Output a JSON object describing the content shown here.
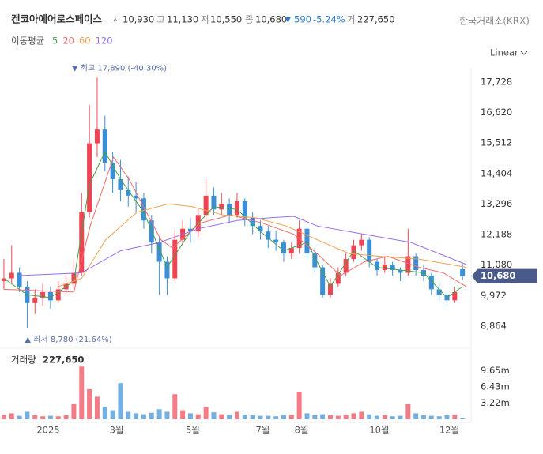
{
  "header": {
    "title": "켄코아에어로스페이스",
    "open_label": "시",
    "open": "10,930",
    "high_label": "고",
    "high": "11,130",
    "low_label": "저",
    "low": "10,550",
    "close_label": "종",
    "close": "10,680",
    "change_arrow": "▼",
    "change": "590",
    "change_pct": "-5.24%",
    "volume_label": "거",
    "volume": "227,650",
    "exchange": "한국거래소(KRX)",
    "ma_label": "이동평균",
    "scale_mode": "Linear"
  },
  "chart_data": {
    "type": "candlestick",
    "up_color": "#f04452",
    "down_color": "#3b8fd9",
    "xlim": [
      -0.5,
      60
    ],
    "xticks": [
      {
        "value": 5.7,
        "label": "2025"
      },
      {
        "value": 14.5,
        "label": "3월"
      },
      {
        "value": 24.3,
        "label": "5월"
      },
      {
        "value": 33.3,
        "label": "7월"
      },
      {
        "value": 38.3,
        "label": "8월"
      },
      {
        "value": 48.3,
        "label": "10월"
      },
      {
        "value": 57.3,
        "label": "12월"
      }
    ],
    "ylim": [
      8090,
      18270
    ],
    "yticks": [
      {
        "value": 8864,
        "label": "8,864"
      },
      {
        "value": 9972,
        "label": "9,972"
      },
      {
        "value": 11080,
        "label": "11,080"
      },
      {
        "value": 12188,
        "label": "12,188"
      },
      {
        "value": 13296,
        "label": "13,296"
      },
      {
        "value": 14404,
        "label": "14,404"
      },
      {
        "value": 15512,
        "label": "15,512"
      },
      {
        "value": 16620,
        "label": "16,620"
      },
      {
        "value": 17728,
        "label": "17,728"
      }
    ],
    "candles": {
      "x": [
        0,
        1,
        2,
        3,
        4,
        5,
        6,
        7,
        8,
        9,
        10,
        11,
        12,
        13,
        14,
        15,
        16,
        17,
        18,
        19,
        20,
        21,
        22,
        23,
        24,
        25,
        26,
        27,
        28,
        29,
        30,
        31,
        32,
        33,
        34,
        35,
        36,
        37,
        38,
        39,
        40,
        41,
        42,
        43,
        44,
        45,
        46,
        47,
        48,
        49,
        50,
        51,
        52,
        53,
        54,
        55,
        56,
        57,
        58,
        59
      ],
      "open": [
        10500,
        10600,
        10800,
        10300,
        9700,
        9900,
        10100,
        9800,
        10200,
        10400,
        10800,
        13000,
        15500,
        16000,
        14800,
        14200,
        13800,
        13600,
        13500,
        12700,
        11900,
        11200,
        10600,
        12000,
        12400,
        12300,
        12900,
        13600,
        13100,
        13300,
        12900,
        13400,
        12800,
        12500,
        12300,
        12000,
        11900,
        11500,
        11700,
        12400,
        11500,
        11000,
        10000,
        10400,
        10800,
        11300,
        11800,
        12000,
        11200,
        10900,
        11100,
        10900,
        10800,
        11400,
        10900,
        10700,
        10200,
        10000,
        9800,
        10930
      ],
      "high": [
        11300,
        11800,
        11000,
        10500,
        10200,
        10400,
        10300,
        10500,
        10700,
        11300,
        13700,
        16900,
        17890,
        16500,
        15200,
        14900,
        14300,
        14100,
        13700,
        12900,
        12100,
        11400,
        12300,
        12700,
        12800,
        13100,
        14200,
        13900,
        13700,
        13500,
        13700,
        13500,
        13000,
        12700,
        12500,
        12300,
        12000,
        11900,
        12700,
        12500,
        11700,
        11100,
        10600,
        11000,
        11500,
        12000,
        12200,
        12100,
        11300,
        11400,
        11200,
        11000,
        12400,
        11500,
        11100,
        10800,
        10400,
        10100,
        10300,
        11130
      ],
      "low": [
        10200,
        10400,
        10100,
        8780,
        9300,
        9600,
        9500,
        9700,
        10000,
        10200,
        10700,
        12800,
        15000,
        14500,
        13700,
        13400,
        13200,
        13000,
        12400,
        11500,
        10000,
        10000,
        10500,
        11800,
        11900,
        12100,
        12700,
        12900,
        12900,
        12600,
        12800,
        12500,
        12200,
        12000,
        11700,
        11600,
        11200,
        11300,
        11500,
        11300,
        10800,
        9900,
        9900,
        10300,
        10700,
        11200,
        11600,
        11000,
        10700,
        10800,
        10700,
        10500,
        10700,
        10700,
        10500,
        10000,
        9800,
        9600,
        9700,
        10550
      ],
      "close": [
        10600,
        10800,
        10300,
        9700,
        9900,
        10100,
        9800,
        10200,
        10400,
        10800,
        13000,
        15500,
        16000,
        14800,
        14200,
        13800,
        13600,
        13500,
        12700,
        11900,
        11200,
        10600,
        12000,
        12400,
        12300,
        12900,
        13600,
        13100,
        13300,
        12900,
        13400,
        12800,
        12500,
        12300,
        12000,
        11900,
        11500,
        11700,
        12400,
        11500,
        11000,
        10000,
        10400,
        10800,
        11300,
        11800,
        12000,
        11200,
        10900,
        11100,
        10900,
        10800,
        11400,
        10900,
        10700,
        10200,
        10000,
        9800,
        10100,
        10680
      ]
    },
    "moving_averages": [
      {
        "name": "5",
        "color": "#43a047",
        "x": [
          0,
          3,
          6,
          9,
          11,
          13,
          15,
          18,
          21,
          24,
          27,
          30,
          33,
          36,
          39,
          42,
          45,
          48,
          51,
          54,
          57,
          59
        ],
        "values": [
          10600,
          10000,
          9900,
          10500,
          14000,
          15200,
          14200,
          13000,
          11000,
          12300,
          13200,
          13100,
          12300,
          11600,
          11900,
          10300,
          11600,
          11000,
          10900,
          10800,
          9900,
          10300
        ]
      },
      {
        "name": "20",
        "color": "#ef6c6c",
        "x": [
          0,
          9,
          11.1,
          14.1,
          16.1,
          20.2,
          21.7,
          25.2,
          29.2,
          33.3,
          37.3,
          40.3,
          43.3,
          46.4,
          49.4,
          53.4,
          56.5,
          59.5
        ],
        "values": [
          10200,
          10100,
          12500,
          15000,
          14200,
          12000,
          11700,
          12600,
          12900,
          12600,
          12200,
          11500,
          10700,
          11200,
          11400,
          11000,
          10800,
          10300
        ]
      },
      {
        "name": "60",
        "color": "#f0a04b",
        "x": [
          7,
          10,
          13.1,
          17.1,
          21.2,
          24.2,
          28.2,
          32.3,
          36.3,
          40.3,
          44.4,
          48.4,
          53.4,
          59.5
        ],
        "values": [
          10300,
          10600,
          12000,
          13000,
          13300,
          13200,
          12900,
          12800,
          12500,
          12000,
          11500,
          11400,
          11300,
          11000
        ]
      },
      {
        "name": "120",
        "color": "#9a6ee8",
        "x": [
          2,
          10,
          15,
          20,
          25,
          30,
          34.3,
          37.3,
          40.3,
          46.4,
          52.4,
          59.5
        ],
        "values": [
          10700,
          10800,
          11600,
          11900,
          12400,
          12700,
          12800,
          12850,
          12500,
          12200,
          11900,
          11100
        ]
      }
    ],
    "volume": {
      "title": "거래량",
      "label": "227,650",
      "values": [
        900000,
        1200000,
        700000,
        1500000,
        800000,
        600000,
        700000,
        600000,
        800000,
        3000000,
        10500000,
        6000000,
        4500000,
        2500000,
        1800000,
        7200000,
        1500000,
        1200000,
        1000000,
        1300000,
        2000000,
        1500000,
        5000000,
        1800000,
        1200000,
        1000000,
        2500000,
        1400000,
        1000000,
        900000,
        1500000,
        900000,
        800000,
        700000,
        700000,
        600000,
        800000,
        900000,
        5500000,
        1200000,
        900000,
        1000000,
        800000,
        700000,
        900000,
        1200000,
        1500000,
        1000000,
        700000,
        800000,
        600000,
        700000,
        3000000,
        1200000,
        800000,
        700000,
        600000,
        800000,
        900000,
        227650
      ],
      "ylim": [
        0,
        14000000
      ],
      "yticks": [
        {
          "value": 3220000,
          "label": "3.22m"
        },
        {
          "value": 6430000,
          "label": "6.43m"
        },
        {
          "value": 9650000,
          "label": "9.65m"
        }
      ]
    },
    "annotations": {
      "max": {
        "value": 17890,
        "label": "▼ 최고 17,890 (-40.30%)",
        "x": 12
      },
      "min": {
        "value": 8780,
        "label": "▲ 최저 8,780 (21.64%)",
        "x": 3
      }
    },
    "current_price": {
      "value": 10680,
      "label": "10,680"
    }
  }
}
